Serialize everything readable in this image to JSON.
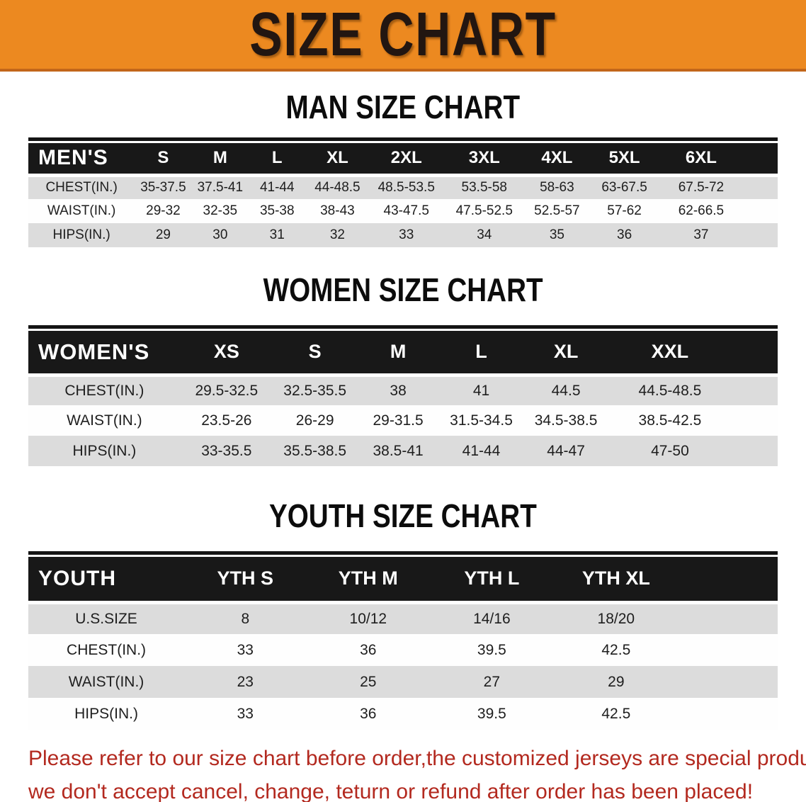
{
  "banner": {
    "title": "SIZE CHART"
  },
  "sections": [
    {
      "heading": "MAN SIZE CHART",
      "corner_label": "MEN'S",
      "sizes": [
        "S",
        "M",
        "L",
        "XL",
        "2XL",
        "3XL",
        "4XL",
        "5XL",
        "6XL"
      ],
      "rows": [
        {
          "label": "CHEST(IN.)",
          "values": [
            "35-37.5",
            "37.5-41",
            "41-44",
            "44-48.5",
            "48.5-53.5",
            "53.5-58",
            "58-63",
            "63-67.5",
            "67.5-72"
          ]
        },
        {
          "label": "WAIST(IN.)",
          "values": [
            "29-32",
            "32-35",
            "35-38",
            "38-43",
            "43-47.5",
            "47.5-52.5",
            "52.5-57",
            "57-62",
            "62-66.5"
          ]
        },
        {
          "label": "HIPS(IN.)",
          "values": [
            "29",
            "30",
            "31",
            "32",
            "33",
            "34",
            "35",
            "36",
            "37"
          ]
        }
      ]
    },
    {
      "heading": "WOMEN SIZE CHART",
      "corner_label": "WOMEN'S",
      "sizes": [
        "XS",
        "S",
        "M",
        "L",
        "XL",
        "XXL"
      ],
      "rows": [
        {
          "label": "CHEST(IN.)",
          "values": [
            "29.5-32.5",
            "32.5-35.5",
            "38",
            "41",
            "44.5",
            "44.5-48.5"
          ]
        },
        {
          "label": "WAIST(IN.)",
          "values": [
            "23.5-26",
            "26-29",
            "29-31.5",
            "31.5-34.5",
            "34.5-38.5",
            "38.5-42.5"
          ]
        },
        {
          "label": "HIPS(IN.)",
          "values": [
            "33-35.5",
            "35.5-38.5",
            "38.5-41",
            "41-44",
            "44-47",
            "47-50"
          ]
        }
      ]
    },
    {
      "heading": "YOUTH SIZE CHART",
      "corner_label": "YOUTH",
      "sizes": [
        "YTH S",
        "YTH M",
        "YTH L",
        "YTH XL"
      ],
      "rows": [
        {
          "label": "U.S.SIZE",
          "values": [
            "8",
            "10/12",
            "14/16",
            "18/20"
          ]
        },
        {
          "label": "CHEST(IN.)",
          "values": [
            "33",
            "36",
            "39.5",
            "42.5"
          ]
        },
        {
          "label": "WAIST(IN.)",
          "values": [
            "23",
            "25",
            "27",
            "29"
          ]
        },
        {
          "label": "HIPS(IN.)",
          "values": [
            "33",
            "36",
            "39.5",
            "42.5"
          ]
        }
      ]
    }
  ],
  "disclaimer": {
    "line1": "Please refer to our size chart before order,the customized jerseys are special products,",
    "line2": "we don't accept cancel, change, teturn or refund after order has been placed!"
  },
  "colors": {
    "banner_orange": "#EC8920",
    "banner_orange_dark": "#C2661A",
    "table_header_black": "#181818",
    "row_gray": "#DCDCDC",
    "row_white": "#FEFEFE",
    "disclaimer_red": "#B3291F"
  }
}
